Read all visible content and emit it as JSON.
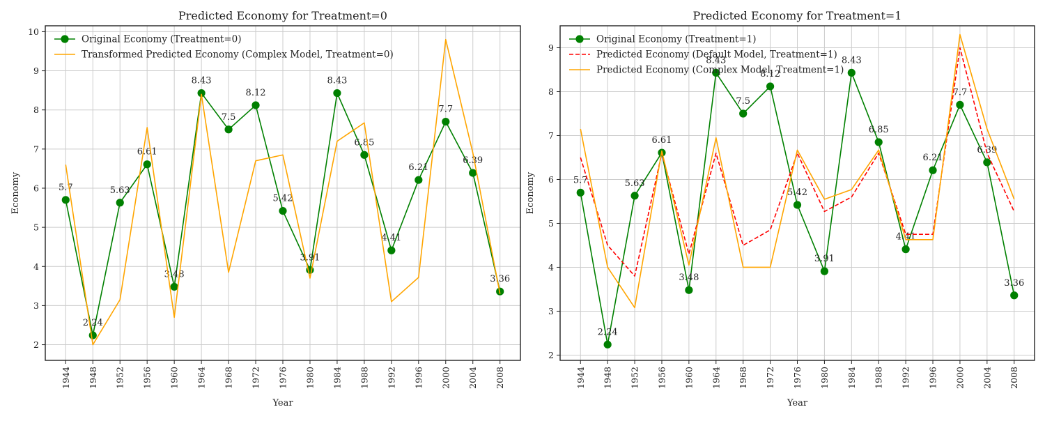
{
  "colors": {
    "original": "#008000",
    "complex": "#FFA500",
    "default": "#FF0000"
  },
  "chart_data": [
    {
      "type": "line",
      "title": "Predicted Economy for Treatment=0",
      "xlabel": "Year",
      "ylabel": "Economy",
      "ylim": [
        1.6,
        10.15
      ],
      "yticks": [
        2,
        3,
        4,
        5,
        6,
        7,
        8,
        9,
        10
      ],
      "grid": true,
      "legend_position": "top-left",
      "x": [
        1944,
        1948,
        1952,
        1956,
        1960,
        1964,
        1968,
        1972,
        1976,
        1980,
        1984,
        1988,
        1992,
        1996,
        2000,
        2004,
        2008
      ],
      "series": [
        {
          "name": "Original Economy (Treatment=0)",
          "style": "solid-marker",
          "color": "#008000",
          "values": [
            5.7,
            2.24,
            5.63,
            6.61,
            3.48,
            8.43,
            7.5,
            8.12,
            5.42,
            3.91,
            8.43,
            6.85,
            4.41,
            6.21,
            7.7,
            6.39,
            3.36
          ],
          "labels": [
            "5.7",
            "2.24",
            "5.63",
            "6.61",
            "3.48",
            "8.43",
            "7.5",
            "8.12",
            "5.42",
            "3.91",
            "8.43",
            "6.85",
            "4.41",
            "6.21",
            "7.7",
            "6.39",
            "3.36"
          ]
        },
        {
          "name": "Transformed Predicted Economy (Complex Model, Treatment=0)",
          "style": "solid",
          "color": "#FFA500",
          "values": [
            6.6,
            2.0,
            3.15,
            7.55,
            2.7,
            8.4,
            3.85,
            6.7,
            6.85,
            3.7,
            7.2,
            7.67,
            3.1,
            3.72,
            9.8,
            6.9,
            3.3
          ]
        }
      ]
    },
    {
      "type": "line",
      "title": "Predicted Economy for Treatment=1",
      "xlabel": "Year",
      "ylabel": "Economy",
      "ylim": [
        1.88,
        9.5
      ],
      "yticks": [
        2,
        3,
        4,
        5,
        6,
        7,
        8,
        9
      ],
      "grid": true,
      "legend_position": "top-left",
      "x": [
        1944,
        1948,
        1952,
        1956,
        1960,
        1964,
        1968,
        1972,
        1976,
        1980,
        1984,
        1988,
        1992,
        1996,
        2000,
        2004,
        2008
      ],
      "series": [
        {
          "name": "Original Economy (Treatment=1)",
          "style": "solid-marker",
          "color": "#008000",
          "values": [
            5.7,
            2.24,
            5.63,
            6.61,
            3.48,
            8.43,
            7.5,
            8.12,
            5.42,
            3.91,
            8.43,
            6.85,
            4.41,
            6.21,
            7.7,
            6.39,
            3.36
          ],
          "labels": [
            "5.7",
            "2.24",
            "5.63",
            "6.61",
            "3.48",
            "8.43",
            "7.5",
            "8.12",
            "5.42",
            "3.91",
            "8.43",
            "6.85",
            "4.41",
            "6.21",
            "7.7",
            "6.39",
            "3.36"
          ]
        },
        {
          "name": "Predicted Economy (Default Model, Treatment=1)",
          "style": "dashed",
          "color": "#FF0000",
          "values": [
            6.5,
            4.5,
            3.8,
            6.6,
            4.3,
            6.6,
            4.5,
            4.85,
            6.6,
            5.27,
            5.6,
            6.6,
            4.75,
            4.75,
            9.0,
            6.6,
            5.27
          ]
        },
        {
          "name": "Predicted Economy (Complex Model, Treatment=1)",
          "style": "solid",
          "color": "#FFA500",
          "values": [
            7.15,
            4.0,
            3.08,
            6.65,
            4.05,
            6.95,
            4.0,
            4.0,
            6.67,
            5.55,
            5.77,
            6.67,
            4.63,
            4.63,
            9.3,
            7.15,
            5.55
          ]
        }
      ]
    }
  ]
}
